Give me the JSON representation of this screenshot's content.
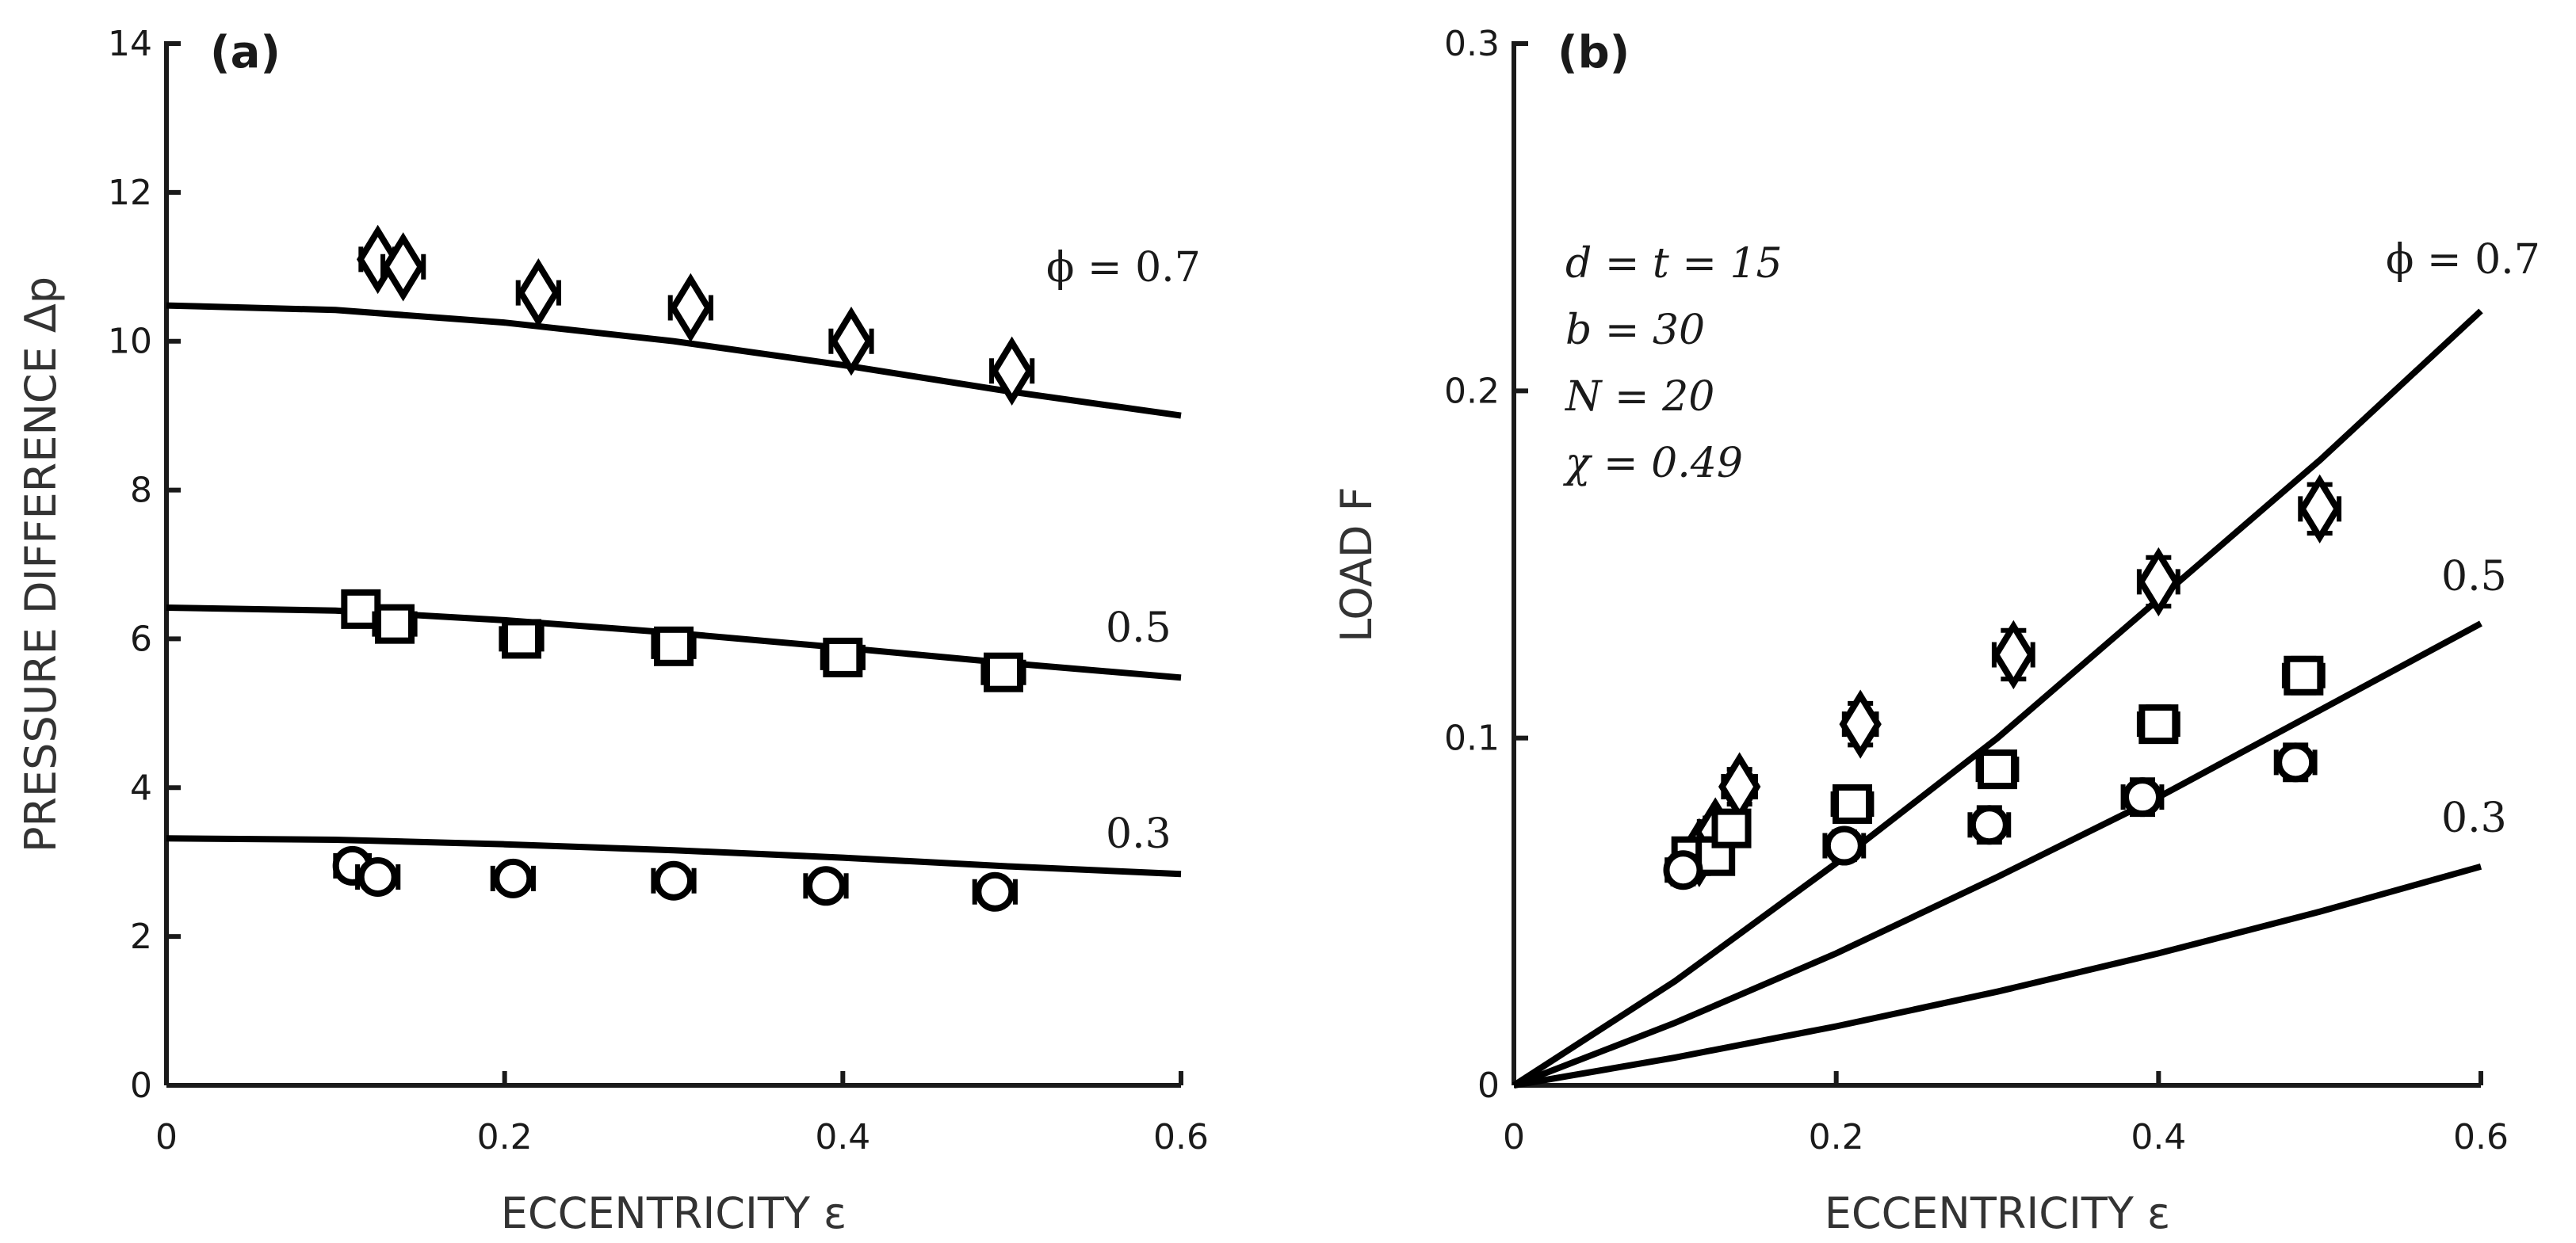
{
  "chart_data": [
    {
      "type": "scatter",
      "panel_label": "(a)",
      "xlabel": "ECCENTRICITY ε",
      "ylabel": "PRESSURE DIFFERENCE Δp",
      "xlim": [
        0,
        0.6
      ],
      "ylim": [
        0,
        14
      ],
      "xticks": [
        "0",
        "0.2",
        "0.4",
        "0.6"
      ],
      "yticks": [
        "0",
        "2",
        "4",
        "6",
        "8",
        "10",
        "12",
        "14"
      ],
      "series": [
        {
          "label": "ϕ = 0.7",
          "marker": "diamond",
          "points": [
            [
              0.125,
              11.1
            ],
            [
              0.14,
              11.0
            ],
            [
              0.22,
              10.65
            ],
            [
              0.31,
              10.45
            ],
            [
              0.405,
              10.0
            ],
            [
              0.5,
              9.6
            ]
          ],
          "xerr": [
            0.01,
            0.012,
            0.012,
            0.012,
            0.012,
            0.012
          ],
          "curve": [
            [
              0,
              10.48
            ],
            [
              0.1,
              10.42
            ],
            [
              0.2,
              10.25
            ],
            [
              0.3,
              10.0
            ],
            [
              0.4,
              9.68
            ],
            [
              0.5,
              9.32
            ],
            [
              0.6,
              9.0
            ]
          ]
        },
        {
          "label": "0.5",
          "marker": "square",
          "points": [
            [
              0.115,
              6.4
            ],
            [
              0.135,
              6.2
            ],
            [
              0.21,
              6.0
            ],
            [
              0.3,
              5.9
            ],
            [
              0.4,
              5.75
            ],
            [
              0.495,
              5.55
            ]
          ],
          "xerr": [
            0.01,
            0.012,
            0.012,
            0.012,
            0.012,
            0.012
          ],
          "curve": [
            [
              0,
              6.42
            ],
            [
              0.1,
              6.38
            ],
            [
              0.2,
              6.25
            ],
            [
              0.3,
              6.08
            ],
            [
              0.4,
              5.88
            ],
            [
              0.5,
              5.67
            ],
            [
              0.6,
              5.48
            ]
          ]
        },
        {
          "label": "0.3",
          "marker": "circle",
          "points": [
            [
              0.11,
              2.95
            ],
            [
              0.125,
              2.8
            ],
            [
              0.205,
              2.78
            ],
            [
              0.3,
              2.75
            ],
            [
              0.39,
              2.68
            ],
            [
              0.49,
              2.6
            ]
          ],
          "xerr": [
            0.01,
            0.012,
            0.012,
            0.012,
            0.012,
            0.012
          ],
          "curve": [
            [
              0,
              3.32
            ],
            [
              0.1,
              3.3
            ],
            [
              0.2,
              3.24
            ],
            [
              0.3,
              3.16
            ],
            [
              0.4,
              3.06
            ],
            [
              0.5,
              2.94
            ],
            [
              0.6,
              2.84
            ]
          ]
        }
      ]
    },
    {
      "type": "scatter",
      "panel_label": "(b)",
      "xlabel": "ECCENTRICITY ε",
      "ylabel": "LOAD F",
      "xlim": [
        0,
        0.6
      ],
      "ylim": [
        0,
        0.3
      ],
      "xticks": [
        "0",
        "0.2",
        "0.4",
        "0.6"
      ],
      "yticks": [
        "0",
        "0.1",
        "0.2",
        "0.3"
      ],
      "annotations": [
        "d = t = 15",
        "b = 30",
        "N = 20",
        "χ = 0.49"
      ],
      "series": [
        {
          "label": "ϕ = 0.7",
          "marker": "diamond",
          "points": [
            [
              0.115,
              0.067
            ],
            [
              0.125,
              0.073
            ],
            [
              0.14,
              0.086
            ],
            [
              0.215,
              0.104
            ],
            [
              0.31,
              0.124
            ],
            [
              0.4,
              0.145
            ],
            [
              0.5,
              0.166
            ]
          ],
          "xerr": [
            0.01,
            0.01,
            0.01,
            0.01,
            0.012,
            0.012,
            0.012
          ],
          "yerr": [
            0.004,
            0.004,
            0.005,
            0.006,
            0.007,
            0.007,
            0.007
          ],
          "curve": [
            [
              0,
              0
            ],
            [
              0.1,
              0.03
            ],
            [
              0.2,
              0.064
            ],
            [
              0.3,
              0.1
            ],
            [
              0.4,
              0.14
            ],
            [
              0.5,
              0.18
            ],
            [
              0.6,
              0.223
            ]
          ]
        },
        {
          "label": "0.5",
          "marker": "square",
          "points": [
            [
              0.11,
              0.066
            ],
            [
              0.125,
              0.066
            ],
            [
              0.135,
              0.074
            ],
            [
              0.21,
              0.081
            ],
            [
              0.3,
              0.091
            ],
            [
              0.4,
              0.104
            ],
            [
              0.49,
              0.118
            ]
          ],
          "xerr": [
            0.01,
            0.01,
            0.01,
            0.012,
            0.012,
            0.012,
            0.012
          ],
          "yerr": [
            0.004,
            0.004,
            0.004,
            0.004,
            0.005,
            0.005,
            0.005
          ],
          "curve": [
            [
              0,
              0
            ],
            [
              0.1,
              0.018
            ],
            [
              0.2,
              0.038
            ],
            [
              0.3,
              0.06
            ],
            [
              0.4,
              0.083
            ],
            [
              0.5,
              0.108
            ],
            [
              0.6,
              0.133
            ]
          ]
        },
        {
          "label": "0.3",
          "marker": "circle",
          "points": [
            [
              0.105,
              0.062
            ],
            [
              0.205,
              0.069
            ],
            [
              0.295,
              0.075
            ],
            [
              0.39,
              0.083
            ],
            [
              0.485,
              0.093
            ]
          ],
          "xerr": [
            0.01,
            0.012,
            0.012,
            0.012,
            0.012
          ],
          "yerr": [
            0.004,
            0.004,
            0.005,
            0.005,
            0.005
          ],
          "curve": [
            [
              0,
              0
            ],
            [
              0.1,
              0.008
            ],
            [
              0.2,
              0.017
            ],
            [
              0.3,
              0.027
            ],
            [
              0.4,
              0.038
            ],
            [
              0.5,
              0.05
            ],
            [
              0.6,
              0.063
            ]
          ]
        }
      ]
    }
  ]
}
